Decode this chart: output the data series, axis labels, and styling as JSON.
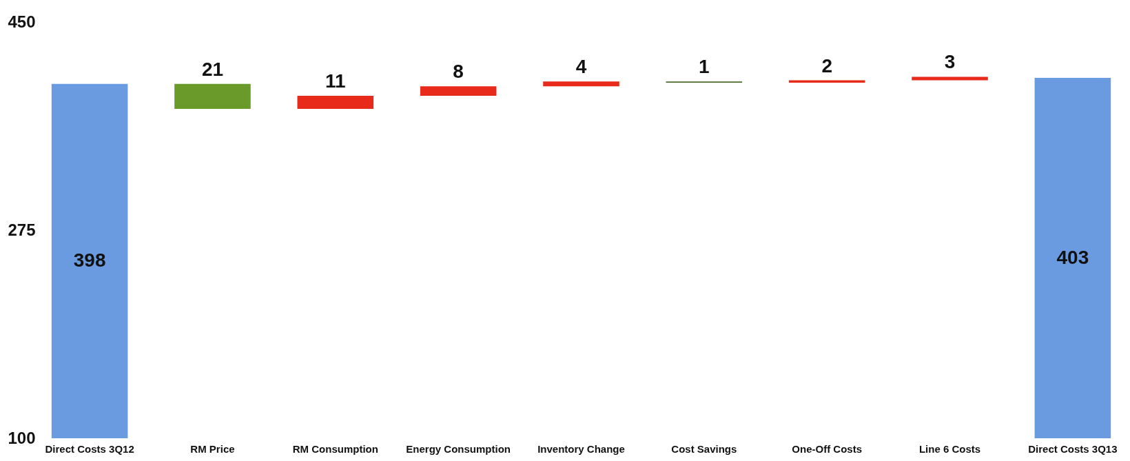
{
  "chart_data": {
    "type": "bar",
    "categories": [
      "Direct Costs 3Q12",
      "RM Price",
      "RM Consumption",
      "Energy Consumption",
      "Inventory Change",
      "Cost Savings",
      "One-Off Costs",
      "Line 6 Costs",
      "Direct Costs 3Q13"
    ],
    "values": [
      398,
      -21,
      11,
      8,
      4,
      -1,
      2,
      3,
      403
    ],
    "base": [
      null,
      398,
      377,
      388,
      396,
      400,
      399,
      401,
      null
    ],
    "colors": [
      "#6a9be0",
      "#6a9a2a",
      "#e82a1a",
      "#e82a1a",
      "#e82a1a",
      "#4a6a2a",
      "#e82a1a",
      "#e82a1a",
      "#6a9be0"
    ],
    "value_labels": [
      "398",
      "21",
      "11",
      "8",
      "4",
      "1",
      "2",
      "3",
      "403"
    ],
    "ylim": [
      100,
      450
    ],
    "yticks": [
      100,
      275,
      450
    ],
    "grid": false
  }
}
